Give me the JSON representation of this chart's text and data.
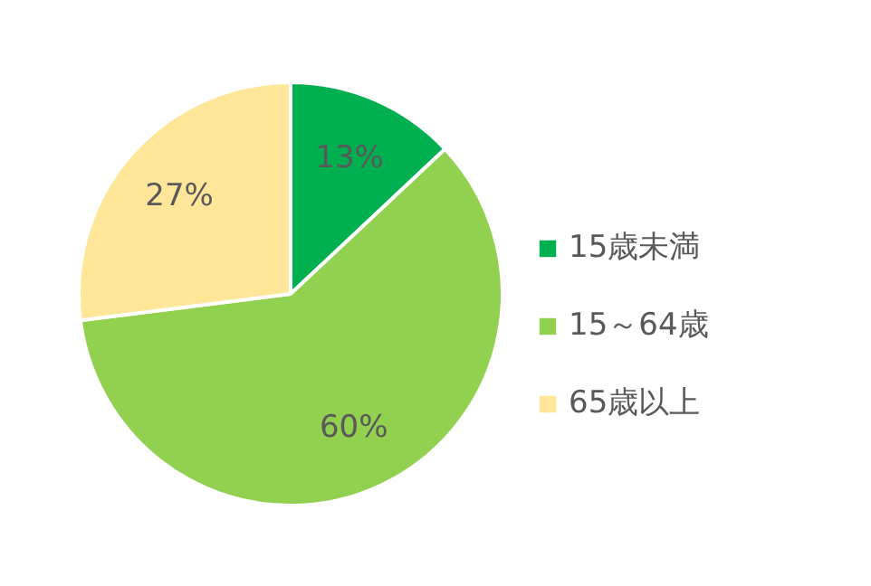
{
  "chart_data": {
    "type": "pie",
    "categories": [
      "15歳未満",
      "15～64歳",
      "65歳以上"
    ],
    "values": [
      13,
      60,
      27
    ],
    "colors": [
      "#00b050",
      "#92d050",
      "#ffe699"
    ],
    "value_labels": [
      "13%",
      "60%",
      "27%"
    ],
    "legend": "right"
  }
}
